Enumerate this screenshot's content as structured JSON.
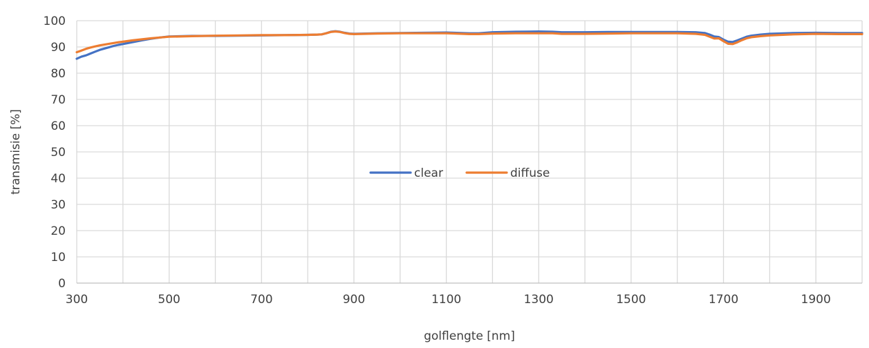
{
  "chart_data": {
    "type": "line",
    "title": "",
    "xlabel": "golflengte [nm]",
    "ylabel": "transmisie [%]",
    "xlim": [
      300,
      2000
    ],
    "ylim": [
      0,
      100
    ],
    "xticks": [
      300,
      500,
      700,
      900,
      1100,
      1300,
      1500,
      1700,
      1900
    ],
    "yticks": [
      0,
      10,
      20,
      30,
      40,
      50,
      60,
      70,
      80,
      90,
      100
    ],
    "grid": true,
    "legend_position": "center",
    "series": [
      {
        "name": "clear",
        "color": "#4472c4",
        "x": [
          300,
          310,
          320,
          330,
          340,
          350,
          360,
          370,
          380,
          390,
          400,
          420,
          440,
          460,
          480,
          500,
          550,
          600,
          650,
          700,
          750,
          800,
          820,
          830,
          840,
          850,
          860,
          870,
          880,
          890,
          900,
          950,
          1000,
          1050,
          1100,
          1150,
          1170,
          1200,
          1250,
          1300,
          1330,
          1350,
          1400,
          1450,
          1500,
          1550,
          1600,
          1640,
          1660,
          1670,
          1680,
          1690,
          1700,
          1710,
          1720,
          1730,
          1740,
          1750,
          1760,
          1780,
          1800,
          1850,
          1900,
          1950,
          2000
        ],
        "y": [
          85.5,
          86.3,
          86.8,
          87.5,
          88.2,
          88.9,
          89.4,
          89.9,
          90.4,
          90.8,
          91.1,
          91.8,
          92.5,
          93.1,
          93.6,
          94.0,
          94.2,
          94.2,
          94.3,
          94.4,
          94.5,
          94.6,
          94.7,
          94.8,
          95.2,
          95.8,
          96.0,
          95.8,
          95.4,
          95.1,
          95.0,
          95.2,
          95.3,
          95.4,
          95.5,
          95.2,
          95.2,
          95.6,
          95.8,
          95.9,
          95.8,
          95.6,
          95.6,
          95.7,
          95.7,
          95.7,
          95.7,
          95.6,
          95.3,
          94.7,
          94.0,
          93.8,
          92.8,
          92.0,
          91.9,
          92.5,
          93.2,
          93.9,
          94.3,
          94.7,
          95.0,
          95.3,
          95.4,
          95.3,
          95.3
        ]
      },
      {
        "name": "diffuse",
        "color": "#ed7d31",
        "x": [
          300,
          310,
          320,
          330,
          340,
          350,
          360,
          370,
          380,
          390,
          400,
          420,
          440,
          460,
          480,
          500,
          550,
          600,
          650,
          700,
          750,
          800,
          820,
          830,
          840,
          850,
          860,
          870,
          880,
          890,
          900,
          950,
          1000,
          1050,
          1100,
          1150,
          1170,
          1200,
          1250,
          1300,
          1330,
          1350,
          1400,
          1450,
          1500,
          1550,
          1600,
          1640,
          1660,
          1670,
          1680,
          1690,
          1700,
          1710,
          1720,
          1730,
          1740,
          1750,
          1760,
          1780,
          1800,
          1850,
          1900,
          1950,
          2000
        ],
        "y": [
          88.0,
          88.6,
          89.3,
          89.8,
          90.2,
          90.6,
          90.9,
          91.2,
          91.5,
          91.8,
          92.0,
          92.5,
          92.9,
          93.3,
          93.6,
          93.9,
          94.1,
          94.3,
          94.4,
          94.5,
          94.5,
          94.6,
          94.7,
          94.8,
          95.2,
          95.7,
          95.9,
          95.7,
          95.3,
          95.0,
          94.9,
          95.1,
          95.2,
          95.2,
          95.2,
          94.9,
          94.9,
          95.1,
          95.2,
          95.2,
          95.2,
          95.0,
          95.0,
          95.1,
          95.2,
          95.2,
          95.2,
          95.0,
          94.6,
          93.9,
          93.2,
          93.3,
          92.2,
          91.2,
          91.1,
          91.8,
          92.6,
          93.3,
          93.7,
          94.1,
          94.4,
          94.8,
          95.0,
          94.9,
          94.9
        ]
      }
    ]
  }
}
